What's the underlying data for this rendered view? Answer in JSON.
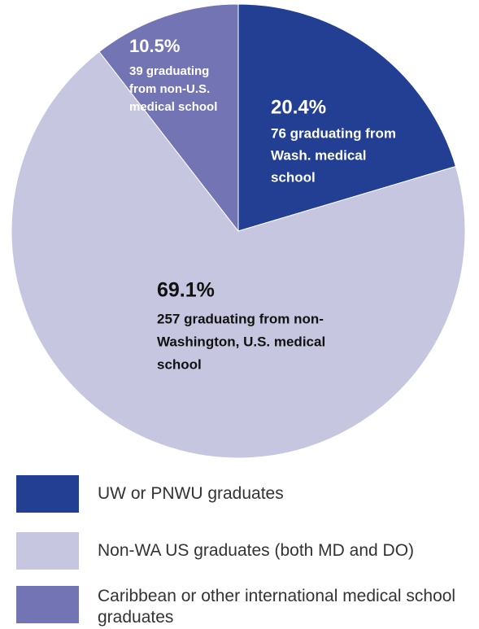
{
  "chart_data": {
    "type": "pie",
    "categories": [
      "UW or PNWU graduates",
      "Non-WA US graduates (both MD and DO)",
      "Caribbean or other international medical school graduates"
    ],
    "values": [
      20.4,
      69.1,
      10.5
    ],
    "value_labels": [
      "20.4%",
      "69.1%",
      "10.5%"
    ],
    "colors": [
      "#233f94",
      "#c6c6e0",
      "#7274b4"
    ],
    "annotations": [
      [
        "76 graduating from",
        "Wash. medical",
        "school"
      ],
      [
        "257 graduating from non-",
        "Washington, U.S. medical",
        "school"
      ],
      [
        "39 graduating",
        "from  non-U.S.",
        "medical school"
      ]
    ]
  }
}
